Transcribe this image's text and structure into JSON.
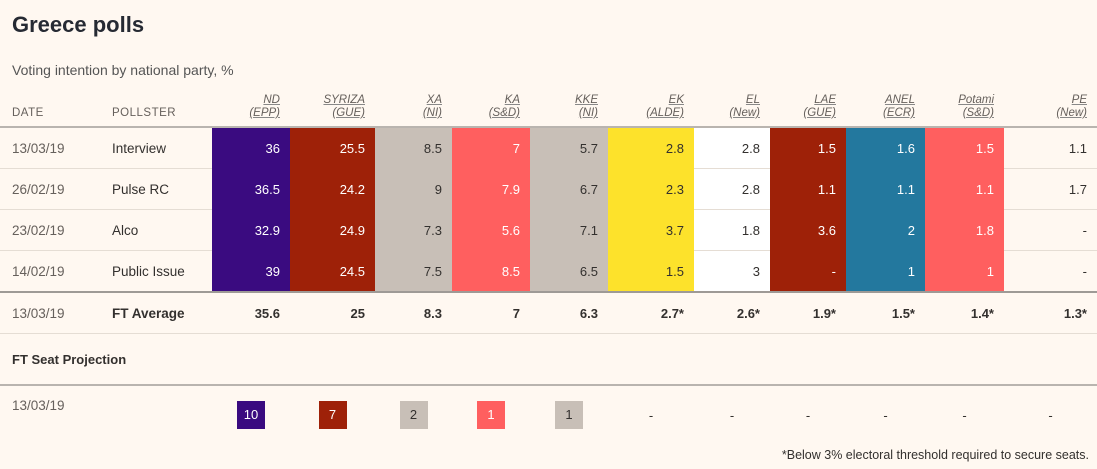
{
  "title": "Greece polls",
  "subtitle": "Voting intention by national party, %",
  "headers": {
    "date": "DATE",
    "pollster": "POLLSTER"
  },
  "parties": [
    {
      "name": "ND",
      "group": "(EPP)",
      "color": "#3a0b80",
      "text": "#ffffff",
      "dark": true
    },
    {
      "name": "SYRIZA",
      "group": "(GUE)",
      "color": "#9e2108",
      "text": "#ffffff",
      "dark": true
    },
    {
      "name": "XA",
      "group": "(NI)",
      "color": "#c8bfb7",
      "text": "#33302e",
      "dark": false
    },
    {
      "name": "KA",
      "group": "(S&D)",
      "color": "#ff5f5f",
      "text": "#ffffff",
      "dark": true
    },
    {
      "name": "KKE",
      "group": "(NI)",
      "color": "#c8bfb7",
      "text": "#33302e",
      "dark": false
    },
    {
      "name": "EK",
      "group": "(ALDE)",
      "color": "#fde22b",
      "text": "#33302e",
      "dark": false
    },
    {
      "name": "EL",
      "group": "(New)",
      "color": "#ffffff",
      "text": "#33302e",
      "dark": false
    },
    {
      "name": "LAE",
      "group": "(GUE)",
      "color": "#9e2108",
      "text": "#ffffff",
      "dark": true
    },
    {
      "name": "ANEL",
      "group": "(ECR)",
      "color": "#23789e",
      "text": "#ffffff",
      "dark": true
    },
    {
      "name": "Potami",
      "group": "(S&D)",
      "color": "#ff5f5f",
      "text": "#ffffff",
      "dark": true
    },
    {
      "name": "PE",
      "group": "(New)",
      "color": "#fff8f1",
      "text": "#33302e",
      "dark": false
    }
  ],
  "chart_data": {
    "type": "table",
    "title": "Greece polls",
    "subtitle": "Voting intention by national party, %",
    "polls": [
      {
        "date": "13/03/19",
        "pollster": "Interview",
        "values": [
          "36",
          "25.5",
          "8.5",
          "7",
          "5.7",
          "2.8",
          "2.8",
          "1.5",
          "1.6",
          "1.5",
          "1.1"
        ]
      },
      {
        "date": "26/02/19",
        "pollster": "Pulse RC",
        "values": [
          "36.5",
          "24.2",
          "9",
          "7.9",
          "6.7",
          "2.3",
          "2.8",
          "1.1",
          "1.1",
          "1.1",
          "1.7"
        ]
      },
      {
        "date": "23/02/19",
        "pollster": "Alco",
        "values": [
          "32.9",
          "24.9",
          "7.3",
          "5.6",
          "7.1",
          "3.7",
          "1.8",
          "3.6",
          "2",
          "1.8",
          "-"
        ]
      },
      {
        "date": "14/02/19",
        "pollster": "Public Issue",
        "values": [
          "39",
          "24.5",
          "7.5",
          "8.5",
          "6.5",
          "1.5",
          "3",
          "-",
          "1",
          "1",
          "-"
        ]
      }
    ],
    "average": {
      "date": "13/03/19",
      "label": "FT Average",
      "values": [
        "35.6",
        "25",
        "8.3",
        "7",
        "6.3",
        "2.7*",
        "2.6*",
        "1.9*",
        "1.5*",
        "1.4*",
        "1.3*"
      ]
    },
    "projection": {
      "title": "FT Seat Projection",
      "date": "13/03/19",
      "values": [
        "10",
        "7",
        "2",
        "1",
        "1",
        "-",
        "-",
        "-",
        "-",
        "-",
        "-"
      ]
    }
  },
  "footnote": "*Below 3% electoral threshold required to secure seats."
}
